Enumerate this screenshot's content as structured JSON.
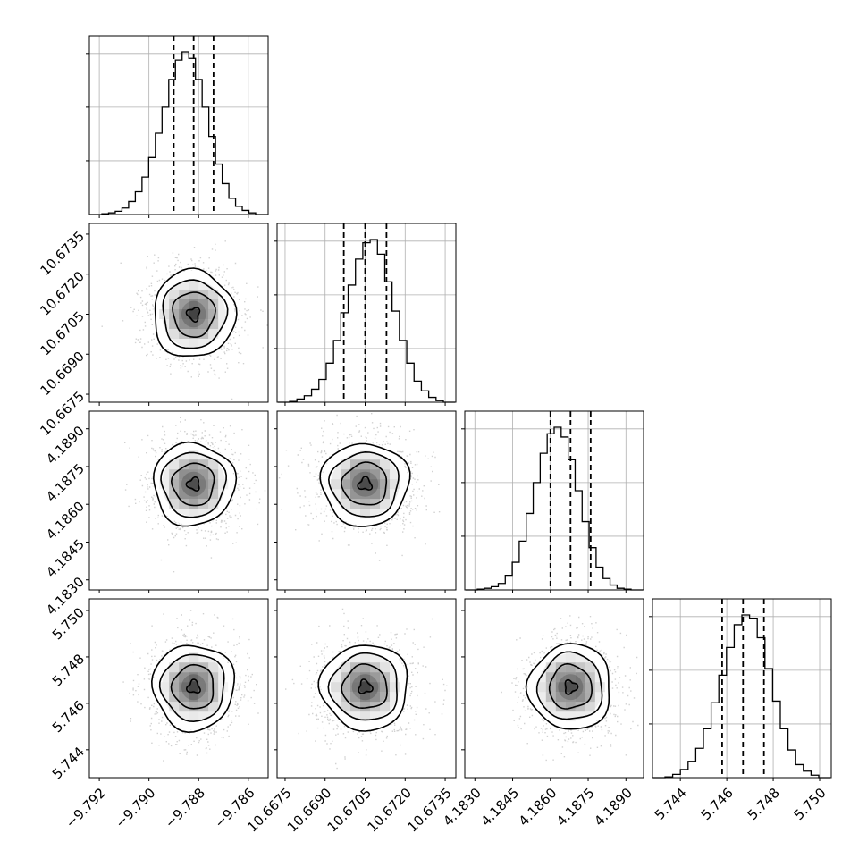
{
  "chart_data": {
    "type": "corner",
    "parameters": [
      {
        "range": [
          -9.7924,
          -9.7852
        ],
        "ticks": [
          "−9.792",
          "−9.790",
          "−9.788",
          "−9.786"
        ],
        "tick_values": [
          -9.792,
          -9.79,
          -9.788,
          -9.786
        ],
        "mean": -9.7882,
        "sigma": 0.0008,
        "quantiles": [
          -9.789,
          -9.7882,
          -9.7874
        ],
        "hist_values": [
          0.5,
          1,
          2,
          4,
          8,
          14,
          23,
          35,
          50,
          66,
          83,
          95,
          100,
          96,
          83,
          66,
          48,
          31,
          19,
          10,
          5,
          2.5,
          1
        ]
      },
      {
        "range": [
          10.6672,
          10.6739
        ],
        "ticks": [
          "10.6675",
          "10.6690",
          "10.6705",
          "10.6720",
          "10.6735"
        ],
        "tick_values": [
          10.6675,
          10.669,
          10.6705,
          10.672,
          10.6735
        ],
        "mean": 10.6705,
        "sigma": 0.0008,
        "quantiles": [
          10.6697,
          10.6705,
          10.6713
        ],
        "hist_values": [
          0.5,
          2,
          4,
          8,
          14,
          24,
          38,
          55,
          72,
          88,
          98,
          100,
          91,
          74,
          56,
          38,
          24,
          13,
          7,
          3,
          1
        ]
      },
      {
        "range": [
          4.1826,
          4.1897
        ],
        "ticks": [
          "4.1830",
          "4.1845",
          "4.1860",
          "4.1875",
          "4.1890"
        ],
        "tick_values": [
          4.183,
          4.1845,
          4.186,
          4.1875,
          4.189
        ],
        "mean": 4.1868,
        "sigma": 0.0008,
        "quantiles": [
          4.186,
          4.1868,
          4.1876
        ],
        "hist_values": [
          0.5,
          1,
          2,
          4,
          9,
          17,
          30,
          47,
          66,
          84,
          96,
          100,
          94,
          80,
          61,
          42,
          26,
          14,
          7,
          3,
          1,
          0.5
        ]
      },
      {
        "range": [
          5.7428,
          5.7505
        ],
        "ticks": [
          "5.744",
          "5.746",
          "5.748",
          "5.750"
        ],
        "tick_values": [
          5.744,
          5.746,
          5.748,
          5.75
        ],
        "mean": 5.7467,
        "sigma": 0.0009,
        "quantiles": [
          5.7458,
          5.7467,
          5.7476
        ],
        "hist_values": [
          0.5,
          2,
          5,
          10,
          18,
          30,
          46,
          63,
          80,
          94,
          100,
          98,
          86,
          67,
          47,
          30,
          17,
          8,
          4,
          1.5
        ]
      }
    ],
    "contour_levels": [
      "0.5σ",
      "1σ",
      "1.5σ",
      "2σ"
    ],
    "grid": true,
    "colors": {
      "line": "#000000",
      "points": "#808080",
      "grid": "#b0b0b0"
    }
  }
}
